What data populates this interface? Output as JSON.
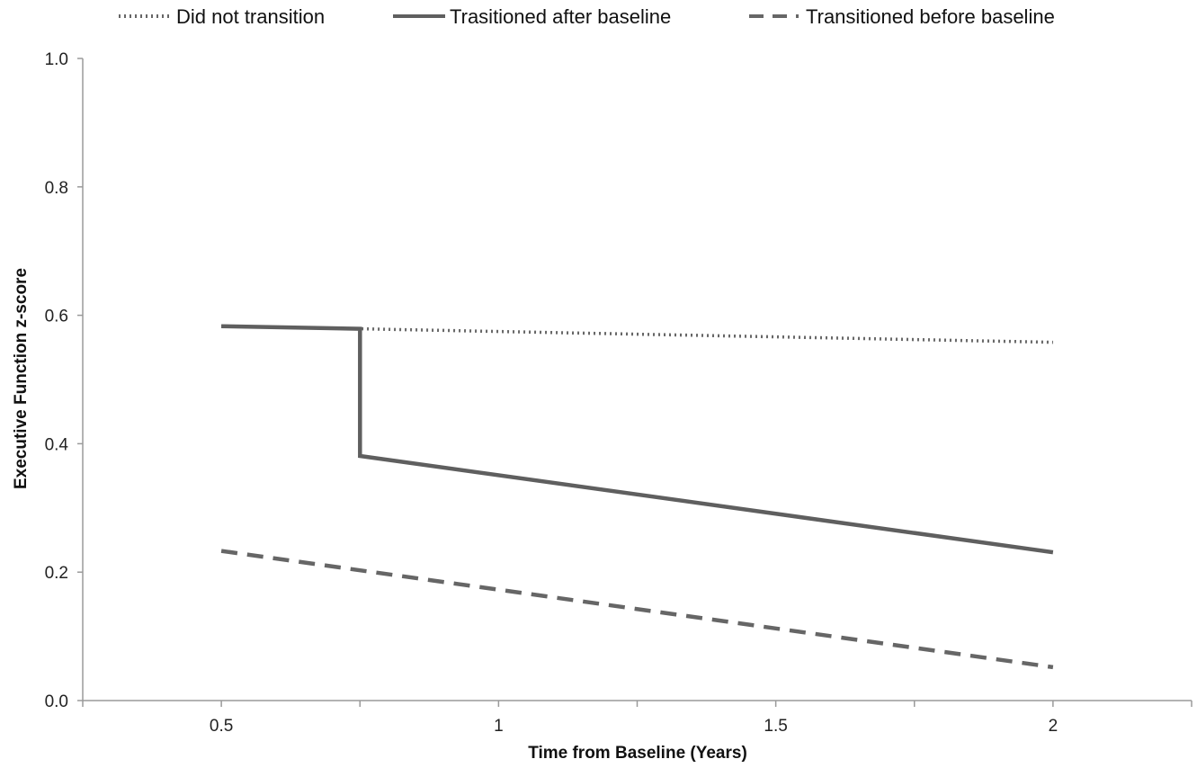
{
  "chart_data": {
    "type": "line",
    "xlabel": "Time from Baseline (Years)",
    "ylabel": "Executive Function z-score",
    "xlim": [
      0.25,
      2.25
    ],
    "ylim": [
      0,
      1.0
    ],
    "x_ticks": [
      0.5,
      1,
      1.5,
      2
    ],
    "x_tick_labels": [
      "0.5",
      "1",
      "1.5",
      "2"
    ],
    "y_ticks": [
      0,
      0.2,
      0.4,
      0.6,
      0.8,
      1.0
    ],
    "y_tick_labels": [
      "0.0",
      "0.2",
      "0.4",
      "0.6",
      "0.8",
      "1.0"
    ],
    "grid": false,
    "legend_position": "top",
    "series": [
      {
        "name": "Did not transition",
        "style": "dotted",
        "color": "#666666",
        "points": [
          [
            0.5,
            0.583
          ],
          [
            0.75,
            0.579
          ],
          [
            2.0,
            0.558
          ]
        ]
      },
      {
        "name": "Trasitioned after baseline",
        "style": "solid",
        "color": "#5f5f5f",
        "points": [
          [
            0.5,
            0.583
          ],
          [
            0.75,
            0.579
          ],
          [
            0.75,
            0.381
          ],
          [
            2.0,
            0.231
          ]
        ]
      },
      {
        "name": "Transitioned before baseline",
        "style": "dashed",
        "color": "#666666",
        "points": [
          [
            0.5,
            0.233
          ],
          [
            2.0,
            0.052
          ]
        ]
      }
    ]
  }
}
